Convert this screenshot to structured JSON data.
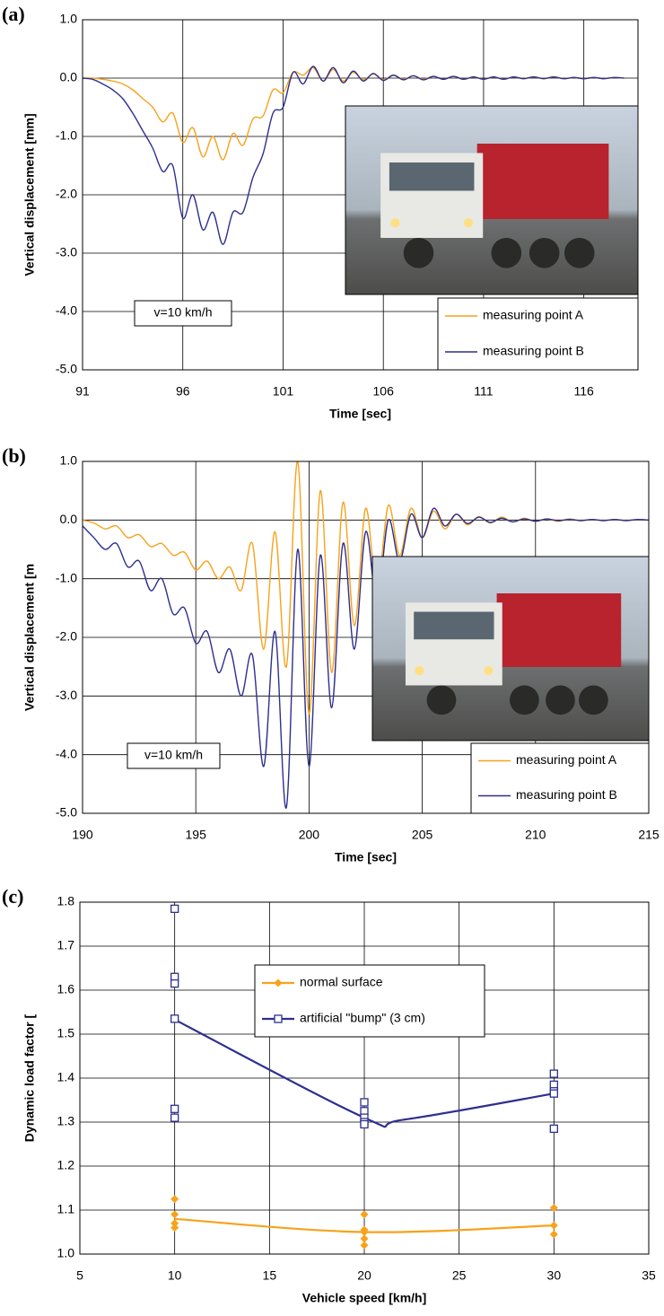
{
  "chart_data": [
    {
      "type": "line",
      "panel_label": "(a)",
      "x_label": "Time [sec]",
      "y_label": "Vertical displacement [mm]",
      "annotation": "v=10 km/h",
      "grid": true,
      "xlim": [
        91,
        118.7
      ],
      "xticks": [
        91,
        96,
        101,
        106,
        111,
        116
      ],
      "ylim": [
        -5,
        1
      ],
      "yticks": [
        {
          "value": -5,
          "label": "-5.0"
        },
        {
          "value": -4,
          "label": "-4.0"
        },
        {
          "value": -3,
          "label": "-3.0"
        },
        {
          "value": -2,
          "label": "-2.0"
        },
        {
          "value": -1,
          "label": "-1.0"
        },
        {
          "value": 0,
          "label": "0.0"
        },
        {
          "value": 1,
          "label": "1.0"
        }
      ],
      "x": [
        91,
        91.5,
        92,
        92.5,
        93,
        93.5,
        94,
        94.5,
        95,
        95.5,
        96,
        96.5,
        97,
        97.5,
        98,
        98.5,
        99,
        99.5,
        100,
        100.5,
        101,
        101.5,
        102,
        102.5,
        103,
        103.5,
        104,
        104.5,
        105,
        105.5,
        106,
        106.5,
        107,
        107.5,
        108,
        108.5,
        109,
        109.5,
        110,
        110.5,
        111,
        111.5,
        112,
        112.5,
        113,
        113.5,
        114,
        114.5,
        115,
        115.5,
        116,
        116.5,
        117,
        117.5,
        118
      ],
      "series": [
        {
          "name": "measuring point A",
          "color": "#f7a21b",
          "values": [
            0,
            0,
            -0.02,
            -0.05,
            -0.1,
            -0.2,
            -0.35,
            -0.5,
            -0.75,
            -0.6,
            -1.1,
            -0.85,
            -1.35,
            -1.0,
            -1.4,
            -0.95,
            -1.15,
            -0.7,
            -0.65,
            -0.2,
            -0.25,
            0.1,
            0.05,
            0.18,
            -0.05,
            0.15,
            -0.05,
            0.1,
            -0.03,
            0.07,
            -0.03,
            0.05,
            -0.02,
            0.04,
            -0.02,
            0.03,
            -0.02,
            0.03,
            -0.02,
            0.02,
            -0.02,
            0.02,
            -0.02,
            0.02,
            -0.01,
            0.02,
            -0.01,
            0.02,
            -0.01,
            0.01,
            -0.01,
            0.01,
            -0.01,
            0.01,
            0
          ]
        },
        {
          "name": "measuring point B",
          "color": "#2e2f8f",
          "values": [
            0,
            -0.02,
            -0.1,
            -0.2,
            -0.35,
            -0.6,
            -0.9,
            -1.2,
            -1.6,
            -1.5,
            -2.4,
            -2.0,
            -2.6,
            -2.3,
            -2.85,
            -2.3,
            -2.3,
            -1.7,
            -1.3,
            -0.6,
            -0.5,
            0.1,
            -0.1,
            0.2,
            -0.05,
            0.18,
            -0.08,
            0.12,
            -0.05,
            0.08,
            -0.04,
            0.05,
            -0.03,
            0.04,
            -0.03,
            0.03,
            -0.02,
            0.03,
            -0.02,
            0.02,
            -0.02,
            0.02,
            -0.02,
            0.02,
            -0.01,
            0.02,
            -0.01,
            0.02,
            -0.01,
            0.01,
            -0.01,
            0.01,
            -0.01,
            0.01,
            0
          ]
        }
      ]
    },
    {
      "type": "line",
      "panel_label": "(b)",
      "x_label": "Time [sec]",
      "y_label": "Vertical displacement [m",
      "annotation": "v=10 km/h",
      "grid": true,
      "xlim": [
        190,
        215
      ],
      "xticks": [
        190,
        195,
        200,
        205,
        210,
        215
      ],
      "ylim": [
        -5,
        1
      ],
      "yticks": [
        {
          "value": -5,
          "label": "-5.0"
        },
        {
          "value": -4,
          "label": "-4.0"
        },
        {
          "value": -3,
          "label": "-3.0"
        },
        {
          "value": -2,
          "label": "-2.0"
        },
        {
          "value": -1,
          "label": "-1.0"
        },
        {
          "value": 0,
          "label": "0.0"
        },
        {
          "value": 1,
          "label": "1.0"
        }
      ],
      "x": [
        190,
        190.5,
        191,
        191.5,
        192,
        192.5,
        193,
        193.5,
        194,
        194.5,
        195,
        195.5,
        196,
        196.5,
        197,
        197.5,
        198,
        198.5,
        199,
        199.5,
        200,
        200.5,
        201,
        201.5,
        202,
        202.5,
        203,
        203.5,
        204,
        204.5,
        205,
        205.5,
        206,
        206.5,
        207,
        207.5,
        208,
        208.5,
        209,
        209.5,
        210,
        210.5,
        211,
        211.5,
        212,
        212.5,
        213,
        213.5,
        214,
        214.5,
        215
      ],
      "series": [
        {
          "name": "measuring point A",
          "color": "#f7a21b",
          "values": [
            0,
            -0.05,
            -0.15,
            -0.1,
            -0.3,
            -0.25,
            -0.45,
            -0.4,
            -0.6,
            -0.55,
            -0.85,
            -0.7,
            -1.0,
            -0.8,
            -1.2,
            -0.4,
            -2.2,
            -0.2,
            -2.5,
            1.0,
            -3.3,
            0.5,
            -2.6,
            0.3,
            -1.8,
            0.2,
            -1.2,
            0.25,
            -0.6,
            0.2,
            -0.3,
            0.15,
            -0.15,
            0.1,
            -0.08,
            0.06,
            -0.05,
            0.05,
            -0.03,
            0.03,
            -0.02,
            0.02,
            -0.02,
            0.02,
            -0.01,
            0.01,
            -0.01,
            0.01,
            -0.01,
            0.01,
            0
          ]
        },
        {
          "name": "measuring point B",
          "color": "#2e2f8f",
          "values": [
            -0.1,
            -0.3,
            -0.5,
            -0.4,
            -0.8,
            -0.7,
            -1.2,
            -1.0,
            -1.6,
            -1.5,
            -2.1,
            -1.9,
            -2.6,
            -2.2,
            -3.0,
            -2.3,
            -4.2,
            -1.9,
            -4.9,
            -0.5,
            -4.2,
            -0.6,
            -3.2,
            -0.4,
            -2.2,
            -0.2,
            -1.4,
            0.0,
            -0.7,
            0.1,
            -0.3,
            0.2,
            -0.1,
            0.1,
            -0.06,
            0.05,
            -0.04,
            0.03,
            -0.03,
            0.02,
            -0.02,
            0.02,
            -0.01,
            0.01,
            -0.01,
            0.01,
            -0.01,
            0.01,
            -0.01,
            0.01,
            0
          ]
        }
      ]
    },
    {
      "type": "scatter",
      "panel_label": "(c)",
      "x_label": "Vehicle speed [km/h]",
      "y_label": "Dynamic load factor [",
      "grid": true,
      "xlim": [
        5,
        35
      ],
      "xticks": [
        5,
        10,
        15,
        20,
        25,
        30,
        35
      ],
      "ylim": [
        1,
        1.8
      ],
      "yticks": [
        {
          "value": 1,
          "label": "1.0"
        },
        1.1,
        1.2,
        1.3,
        1.4,
        1.5,
        1.6,
        1.7,
        1.8
      ],
      "series": [
        {
          "name": "normal surface",
          "color": "#f7a21b",
          "marker": "diamond",
          "x": [
            10,
            10,
            10,
            10,
            20,
            20,
            20,
            20,
            20,
            30,
            30,
            30
          ],
          "values": [
            1.125,
            1.09,
            1.07,
            1.06,
            1.09,
            1.055,
            1.05,
            1.035,
            1.02,
            1.105,
            1.065,
            1.045
          ],
          "trend_x": [
            10,
            20,
            30
          ],
          "trend_values": [
            1.08,
            1.05,
            1.065
          ]
        },
        {
          "name": "artificial \"bump\" (3 cm)",
          "color": "#2e2f8f",
          "marker": "square",
          "x": [
            10,
            10,
            10,
            10,
            10,
            10,
            20,
            20,
            20,
            20,
            20,
            30,
            30,
            30,
            30,
            30
          ],
          "values": [
            1.785,
            1.63,
            1.615,
            1.535,
            1.33,
            1.31,
            1.345,
            1.325,
            1.31,
            1.3,
            1.295,
            1.41,
            1.385,
            1.37,
            1.365,
            1.285
          ],
          "trend_x": [
            10,
            20,
            22,
            30
          ],
          "trend_values": [
            1.533,
            1.31,
            1.305,
            1.365
          ]
        }
      ]
    }
  ]
}
